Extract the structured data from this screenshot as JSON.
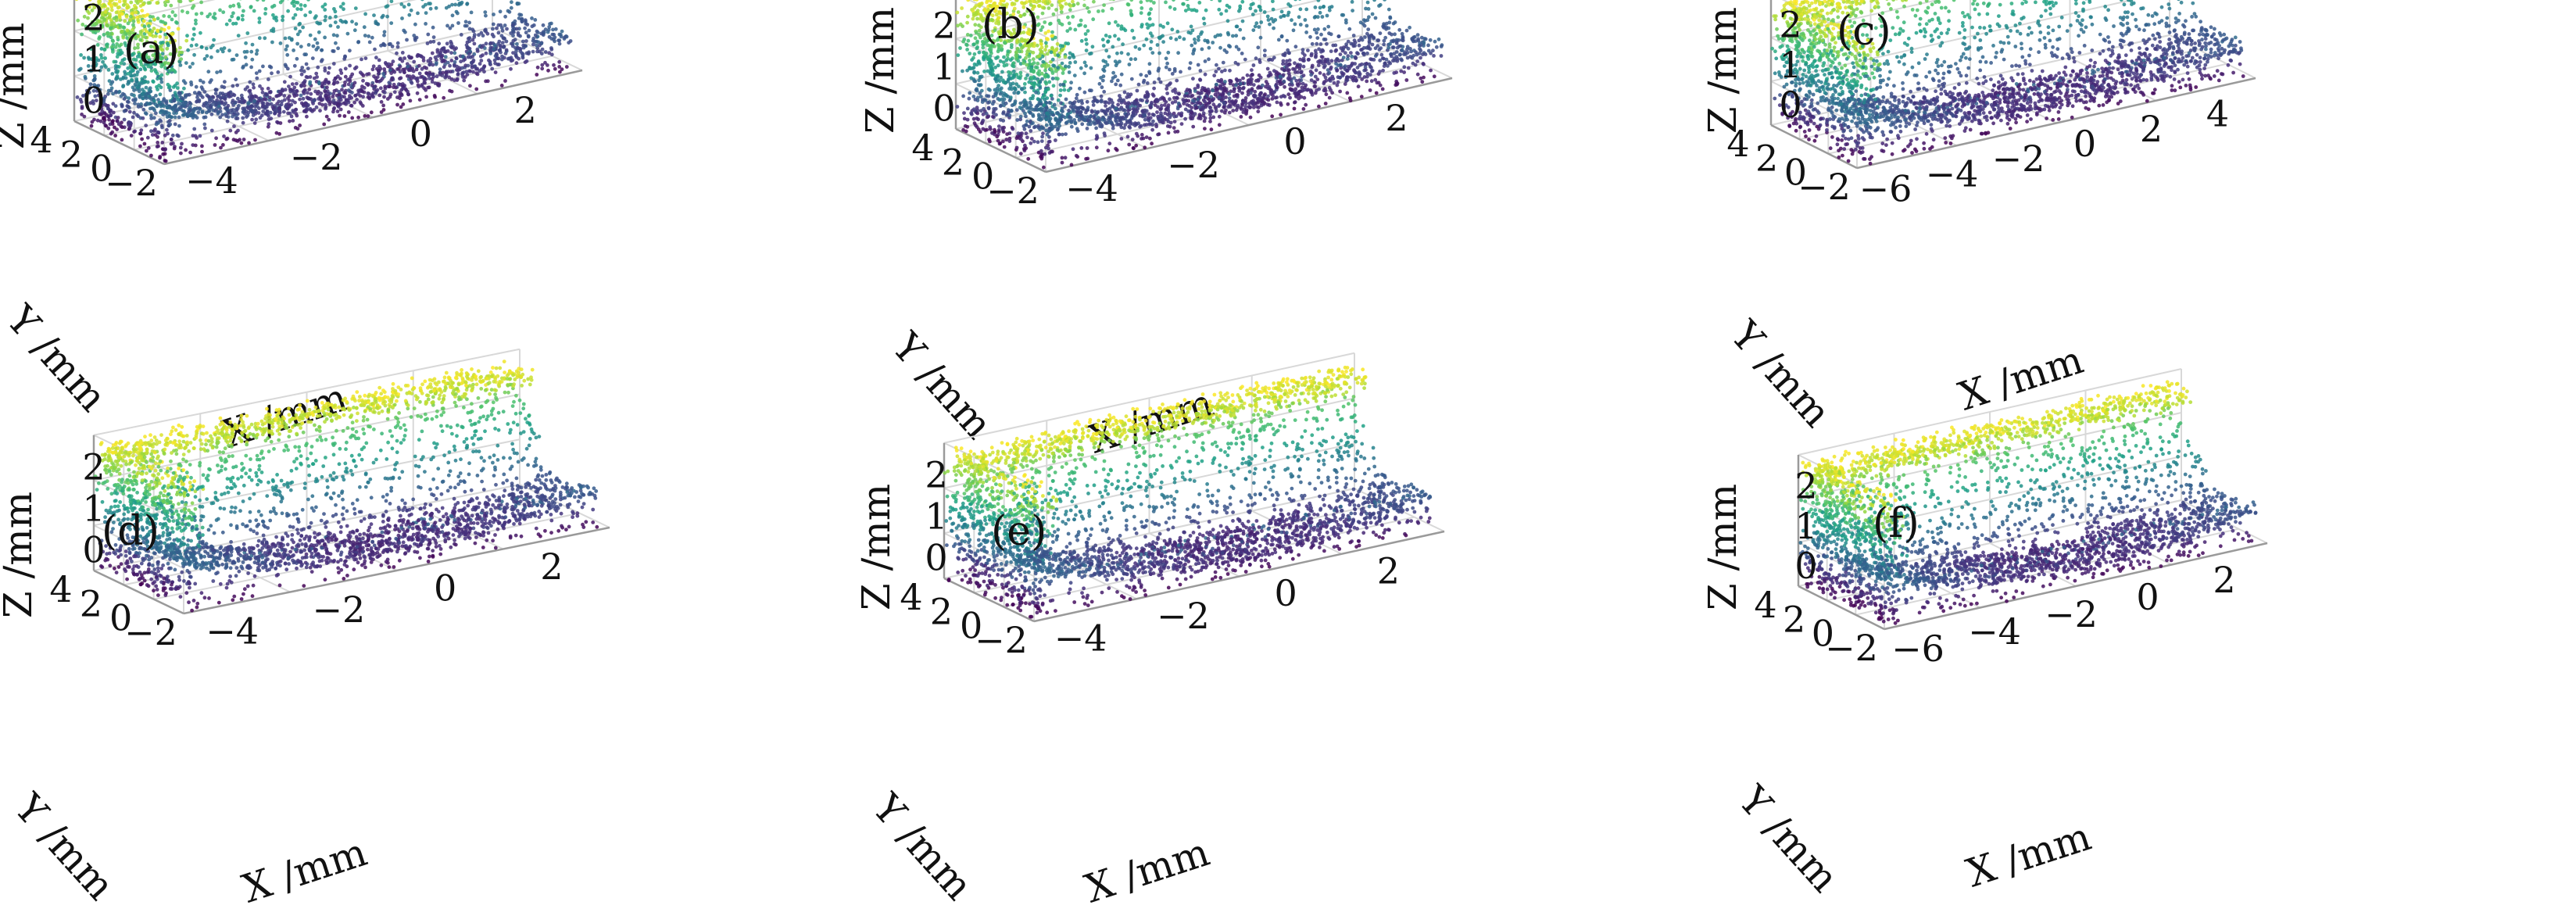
{
  "figure": {
    "colormap": [
      "#440154",
      "#46327e",
      "#365c8d",
      "#277f8e",
      "#1fa187",
      "#4ac16d",
      "#a0da39",
      "#fde725"
    ],
    "grid": true,
    "panels": [
      {
        "label": "(a)"
      },
      {
        "label": "(b)"
      },
      {
        "label": "(c)"
      },
      {
        "label": "(d)"
      },
      {
        "label": "(e)"
      },
      {
        "label": "(f)"
      }
    ]
  },
  "chart_data": [
    {
      "type": "scatter",
      "projection": "3d",
      "panel": "(a)",
      "xlabel": "X /mm",
      "ylabel": "Y /mm",
      "zlabel": "Z /mm",
      "xticks": [
        "-4",
        "-2",
        "0",
        "2"
      ],
      "yticks": [
        "-2",
        "0",
        "2",
        "4"
      ],
      "zticks": [
        "0",
        "1",
        "2"
      ],
      "xlim": [
        -6,
        3
      ],
      "ylim": [
        -2,
        4
      ],
      "zlim": [
        -0.5,
        2.5
      ]
    },
    {
      "type": "scatter",
      "projection": "3d",
      "panel": "(b)",
      "xlabel": "X /mm",
      "ylabel": "Y /mm",
      "zlabel": "Z /mm",
      "xticks": [
        "-4",
        "-2",
        "0",
        "2"
      ],
      "yticks": [
        "-2",
        "0",
        "2",
        "4"
      ],
      "zticks": [
        "0",
        "1",
        "2"
      ],
      "xlim": [
        -6,
        3
      ],
      "ylim": [
        -2,
        4
      ],
      "zlim": [
        -0.5,
        2.5
      ]
    },
    {
      "type": "scatter",
      "projection": "3d",
      "panel": "(c)",
      "xlabel": "X /mm",
      "ylabel": "Y /mm",
      "zlabel": "Z /mm",
      "xticks": [
        "-6",
        "-4",
        "-2",
        "0",
        "2",
        "4"
      ],
      "yticks": [
        "-2",
        "0",
        "2",
        "4"
      ],
      "zticks": [
        "0",
        "1",
        "2"
      ],
      "xlim": [
        -6,
        4
      ],
      "ylim": [
        -2,
        4
      ],
      "zlim": [
        -0.5,
        2.5
      ]
    },
    {
      "type": "scatter",
      "projection": "3d",
      "panel": "(d)",
      "xlabel": "X /mm",
      "ylabel": "Y /mm",
      "zlabel": "Z /mm",
      "xticks": [
        "-4",
        "-2",
        "0",
        "2"
      ],
      "yticks": [
        "-2",
        "0",
        "2",
        "4"
      ],
      "zticks": [
        "0",
        "1",
        "2"
      ],
      "xlim": [
        -6,
        3
      ],
      "ylim": [
        -2,
        4
      ],
      "zlim": [
        -0.5,
        2.5
      ]
    },
    {
      "type": "scatter",
      "projection": "3d",
      "panel": "(e)",
      "xlabel": "X /mm",
      "ylabel": "Y /mm",
      "zlabel": "Z /mm",
      "xticks": [
        "-4",
        "-2",
        "0",
        "2"
      ],
      "yticks": [
        "-2",
        "0",
        "2",
        "4"
      ],
      "zticks": [
        "0",
        "1",
        "2"
      ],
      "xlim": [
        -6,
        3
      ],
      "ylim": [
        -2,
        4
      ],
      "zlim": [
        -0.5,
        2.5
      ]
    },
    {
      "type": "scatter",
      "projection": "3d",
      "panel": "(f)",
      "xlabel": "X /mm",
      "ylabel": "Y /mm",
      "zlabel": "Z /mm",
      "xticks": [
        "-6",
        "-4",
        "-2",
        "0",
        "2"
      ],
      "yticks": [
        "-2",
        "0",
        "2",
        "4"
      ],
      "zticks": [
        "0",
        "1",
        "2"
      ],
      "xlim": [
        -6,
        2
      ],
      "ylim": [
        -2,
        4
      ],
      "zlim": [
        -0.5,
        2.5
      ]
    }
  ]
}
